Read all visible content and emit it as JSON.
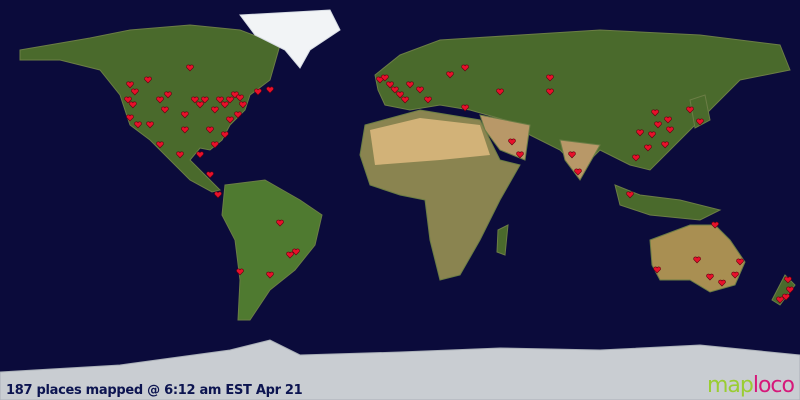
{
  "caption": "187 places mapped @ 6:12 am EST Apr 21",
  "logo": {
    "part1": "map",
    "part2": "loco"
  },
  "colors": {
    "ocean": "#0b0b3b",
    "marker": "#e8102a",
    "logo_green": "#9acd32",
    "logo_pink": "#d6187a"
  },
  "marker_icon": "heart-marker-icon",
  "projection": "equirectangular",
  "markers": [
    [
      -121.5,
      51.8
    ],
    [
      -119.3,
      48.6
    ],
    [
      -122.4,
      45
    ],
    [
      -120.2,
      42.8
    ],
    [
      -121.5,
      36.9
    ],
    [
      -117.9,
      33.8
    ],
    [
      -113.4,
      54
    ],
    [
      -112.5,
      33.8
    ],
    [
      -108,
      45
    ],
    [
      -105.8,
      40.5
    ],
    [
      -104.4,
      47.3
    ],
    [
      -108,
      24.8
    ],
    [
      -99,
      20.3
    ],
    [
      -96.8,
      38.3
    ],
    [
      -96.8,
      31.5
    ],
    [
      -94.5,
      59.4
    ],
    [
      -92.3,
      45
    ],
    [
      -90,
      42.8
    ],
    [
      -87.8,
      45
    ],
    [
      -85.5,
      31.5
    ],
    [
      -83.3,
      40.5
    ],
    [
      -81,
      45
    ],
    [
      -78.8,
      42.8
    ],
    [
      -76.5,
      45
    ],
    [
      -74.3,
      47.3
    ],
    [
      -72,
      45.9
    ],
    [
      -70.7,
      42.8
    ],
    [
      -72.9,
      38.3
    ],
    [
      -76.5,
      36
    ],
    [
      -78.8,
      29.3
    ],
    [
      -83.3,
      24.8
    ],
    [
      -90,
      20.3
    ],
    [
      -85.5,
      11.3
    ],
    [
      -81.9,
      2.3
    ],
    [
      -63.9,
      48.6
    ],
    [
      -58.5,
      49.5
    ],
    [
      -9,
      54
    ],
    [
      -6.8,
      54.9
    ],
    [
      -4.5,
      51.8
    ],
    [
      -2.3,
      49.5
    ],
    [
      0,
      47.3
    ],
    [
      2.3,
      45
    ],
    [
      4.5,
      51.8
    ],
    [
      9,
      49.5
    ],
    [
      12.6,
      45
    ],
    [
      22.5,
      56.3
    ],
    [
      29.3,
      59.4
    ],
    [
      29.3,
      41.4
    ],
    [
      45,
      48.6
    ],
    [
      50.4,
      26.1
    ],
    [
      54,
      20.3
    ],
    [
      67.5,
      54.9
    ],
    [
      67.5,
      48.6
    ],
    [
      77.4,
      20.3
    ],
    [
      80.1,
      12.6
    ],
    [
      103.5,
      2.3
    ],
    [
      106.2,
      18.9
    ],
    [
      108,
      30.2
    ],
    [
      111.6,
      23.4
    ],
    [
      113.4,
      29.3
    ],
    [
      114.8,
      39.2
    ],
    [
      116.1,
      33.8
    ],
    [
      119.3,
      24.8
    ],
    [
      120.6,
      36
    ],
    [
      121.5,
      31.5
    ],
    [
      130.5,
      40.5
    ],
    [
      135,
      35.1
    ],
    [
      -54,
      -10.4
    ],
    [
      -49.5,
      -24.8
    ],
    [
      -46.8,
      -23.4
    ],
    [
      -58.5,
      -33.8
    ],
    [
      -72,
      -32.4
    ],
    [
      115.7,
      -31.5
    ],
    [
      133.7,
      -27
    ],
    [
      139.5,
      -34.7
    ],
    [
      144.9,
      -37.4
    ],
    [
      150.8,
      -33.8
    ],
    [
      153,
      -27.9
    ],
    [
      141.8,
      -11.3
    ],
    [
      174.6,
      -36
    ],
    [
      175.5,
      -40.5
    ],
    [
      173.7,
      -43.7
    ],
    [
      171,
      -45
    ]
  ]
}
